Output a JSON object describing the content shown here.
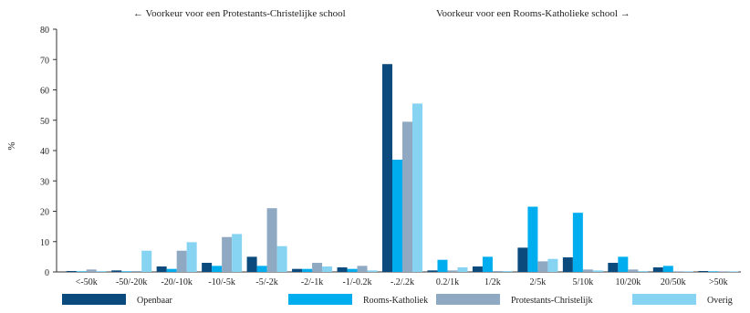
{
  "chart_data": {
    "type": "bar",
    "header_left": "← Voorkeur voor een Protestants-Christelijke school",
    "header_right": "Voorkeur voor een Rooms-Katholieke school →",
    "ylabel": "%",
    "ylim": [
      0,
      80
    ],
    "yticks": [
      0,
      10,
      20,
      30,
      40,
      50,
      60,
      70,
      80
    ],
    "grid": false,
    "legend_position": "bottom",
    "categories": [
      "<-50k",
      "-50/-20k",
      "-20/-10k",
      "-10/-5k",
      "-5/-2k",
      "-2/-1k",
      "-1/-0.2k",
      "-.2/.2k",
      "0.2/1k",
      "1/2k",
      "2/5k",
      "5/10k",
      "10/20k",
      "20/50k",
      ">50k"
    ],
    "series": [
      {
        "name": "Openbaar",
        "color": "#0b4a7d",
        "values": [
          0.3,
          0.5,
          1.8,
          3.0,
          5.0,
          1.0,
          1.5,
          68.5,
          0.5,
          1.8,
          8.0,
          4.8,
          3.0,
          1.5,
          0.3
        ]
      },
      {
        "name": "Rooms-Katholiek",
        "color": "#00aeef",
        "values": [
          0.2,
          0.2,
          1.0,
          2.0,
          2.0,
          1.0,
          1.0,
          37.0,
          4.0,
          5.0,
          21.5,
          19.5,
          5.0,
          2.0,
          0.2
        ]
      },
      {
        "name": "Protestants-Christelijk",
        "color": "#8fa9c3",
        "values": [
          0.8,
          0.3,
          7.0,
          11.5,
          21.0,
          3.0,
          2.0,
          49.5,
          0.5,
          0.3,
          3.5,
          0.8,
          0.8,
          0.2,
          0.2
        ]
      },
      {
        "name": "Overig",
        "color": "#87d3f2",
        "values": [
          0.3,
          7.0,
          9.8,
          12.5,
          8.5,
          1.8,
          0.5,
          55.5,
          1.5,
          0.3,
          4.3,
          0.5,
          0.3,
          0.2,
          0.2
        ]
      }
    ]
  }
}
